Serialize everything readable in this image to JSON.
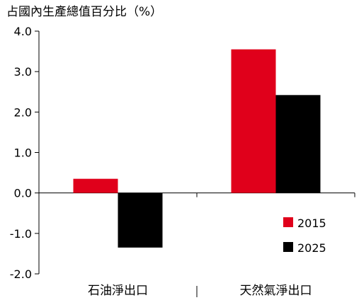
{
  "chart_data": {
    "type": "bar",
    "title": "",
    "ylabel": "占國內生產總值百分比（%）",
    "xlabel": "",
    "categories": [
      "石油淨出口",
      "天然氣淨出口"
    ],
    "series": [
      {
        "name": "2015",
        "values": [
          0.35,
          3.55
        ],
        "color": "#e0001b"
      },
      {
        "name": "2025",
        "values": [
          -1.35,
          2.42
        ],
        "color": "#000000"
      }
    ],
    "ylim": [
      -2.0,
      4.0
    ],
    "yticks": [
      4.0,
      3.0,
      2.0,
      1.0,
      0.0,
      -1.0,
      -2.0
    ],
    "ytick_labels": [
      "4.0",
      "3.0",
      "2.0",
      "1.0",
      "0.0",
      "-1.0",
      "-2.0"
    ],
    "grid": false,
    "legend_position": "bottom-right"
  }
}
